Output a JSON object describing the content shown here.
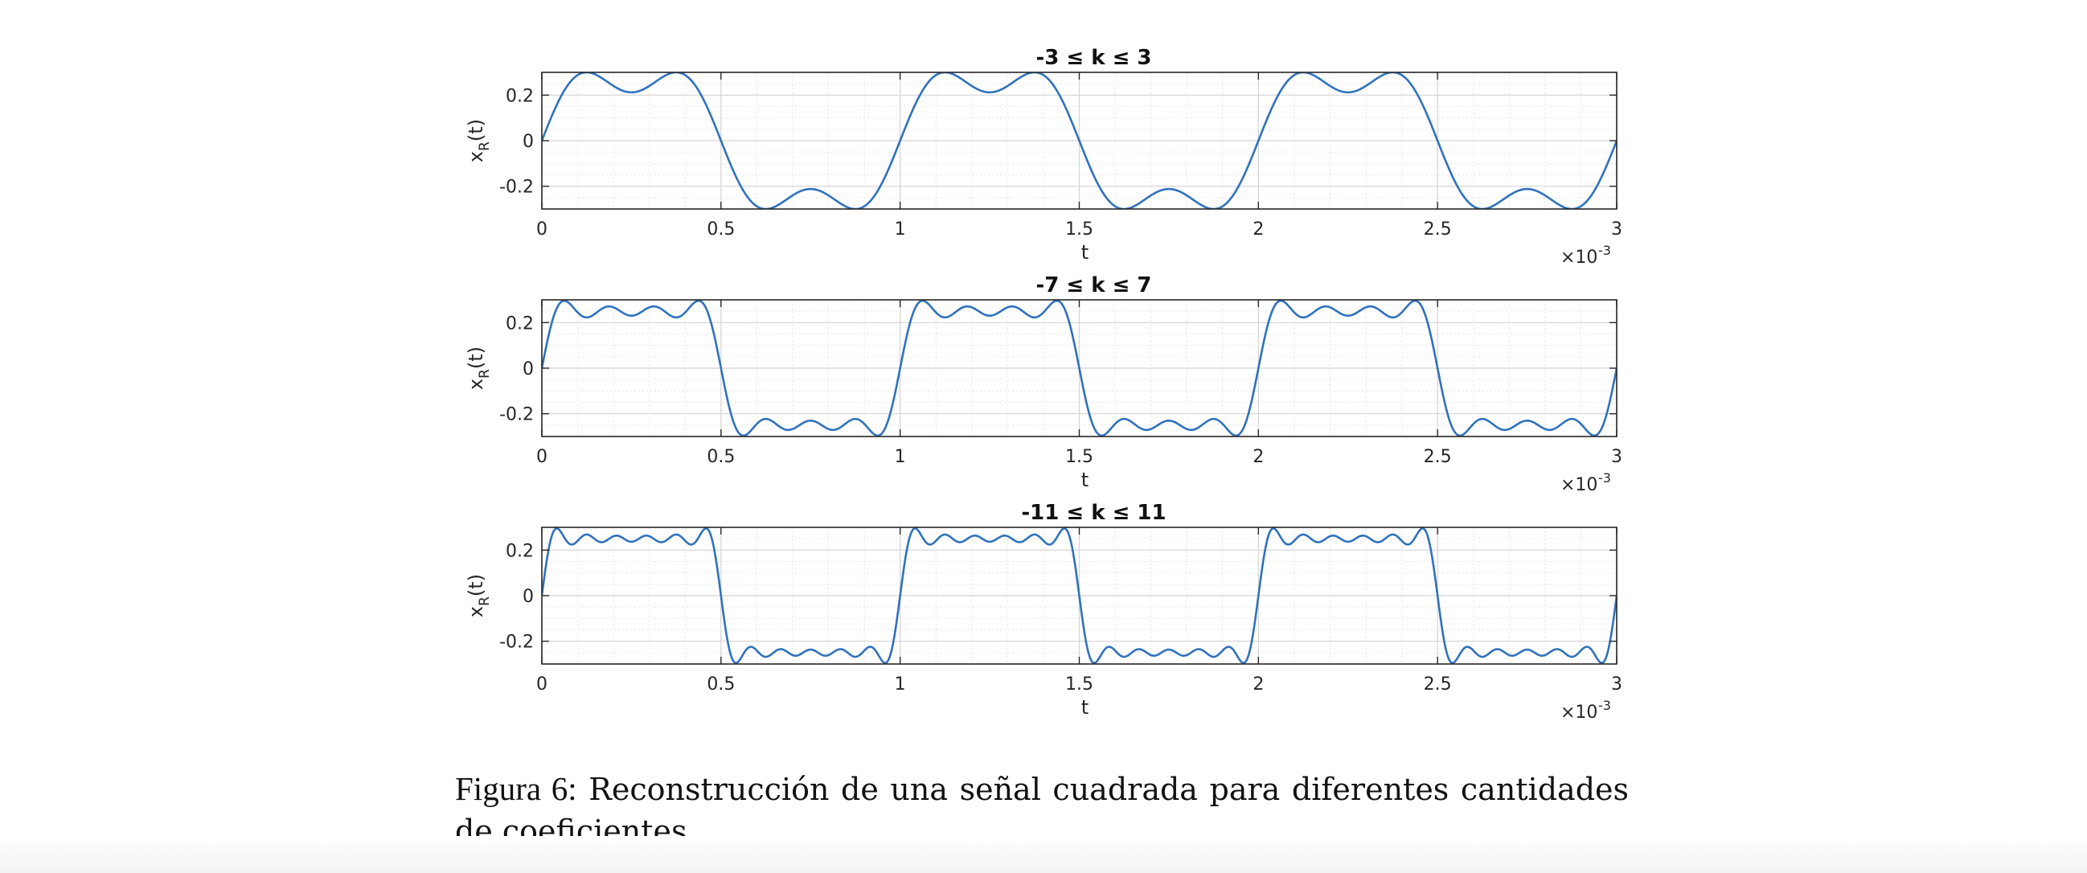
{
  "chart_data": [
    {
      "type": "line",
      "title": "-3 ≤ k ≤ 3",
      "kmax": 3,
      "xlabel": "t",
      "ylabel_main": "x",
      "ylabel_sub": "R",
      "ylabel_tail": "(t)",
      "x_exponent_label": "×10",
      "x_exponent": "-3",
      "xlim": [
        0,
        0.003
      ],
      "ylim": [
        -0.3,
        0.3
      ],
      "x_ticks": [
        "0",
        "0.5",
        "1",
        "1.5",
        "2",
        "2.5",
        "3"
      ],
      "y_ticks": [
        "0.2",
        "0",
        "-0.2"
      ],
      "grid": true,
      "series_color": "#2f72bd",
      "period": 0.001,
      "amplitude": 0.25,
      "series": [
        {
          "name": "",
          "function": "truncated Fourier series of a square wave, |k| ≤ 3"
        }
      ]
    },
    {
      "type": "line",
      "title": "-7 ≤ k ≤ 7",
      "kmax": 7,
      "xlabel": "t",
      "ylabel_main": "x",
      "ylabel_sub": "R",
      "ylabel_tail": "(t)",
      "x_exponent_label": "×10",
      "x_exponent": "-3",
      "xlim": [
        0,
        0.003
      ],
      "ylim": [
        -0.3,
        0.3
      ],
      "x_ticks": [
        "0",
        "0.5",
        "1",
        "1.5",
        "2",
        "2.5",
        "3"
      ],
      "y_ticks": [
        "0.2",
        "0",
        "-0.2"
      ],
      "grid": true,
      "series_color": "#2f72bd",
      "period": 0.001,
      "amplitude": 0.25,
      "series": [
        {
          "name": "",
          "function": "truncated Fourier series of a square wave, |k| ≤ 7"
        }
      ]
    },
    {
      "type": "line",
      "title": "-11 ≤ k ≤ 11",
      "kmax": 11,
      "xlabel": "t",
      "ylabel_main": "x",
      "ylabel_sub": "R",
      "ylabel_tail": "(t)",
      "x_exponent_label": "×10",
      "x_exponent": "-3",
      "xlim": [
        0,
        0.003
      ],
      "ylim": [
        -0.3,
        0.3
      ],
      "x_ticks": [
        "0",
        "0.5",
        "1",
        "1.5",
        "2",
        "2.5",
        "3"
      ],
      "y_ticks": [
        "0.2",
        "0",
        "-0.2"
      ],
      "grid": true,
      "series_color": "#2f72bd",
      "period": 0.001,
      "amplitude": 0.25,
      "series": [
        {
          "name": "",
          "function": "truncated Fourier series of a square wave, |k| ≤ 11"
        }
      ]
    }
  ],
  "caption": {
    "lead": "Figura 6:",
    "text": " Reconstrucción de una señal cuadrada para diferentes cantidades de coeficientes."
  }
}
